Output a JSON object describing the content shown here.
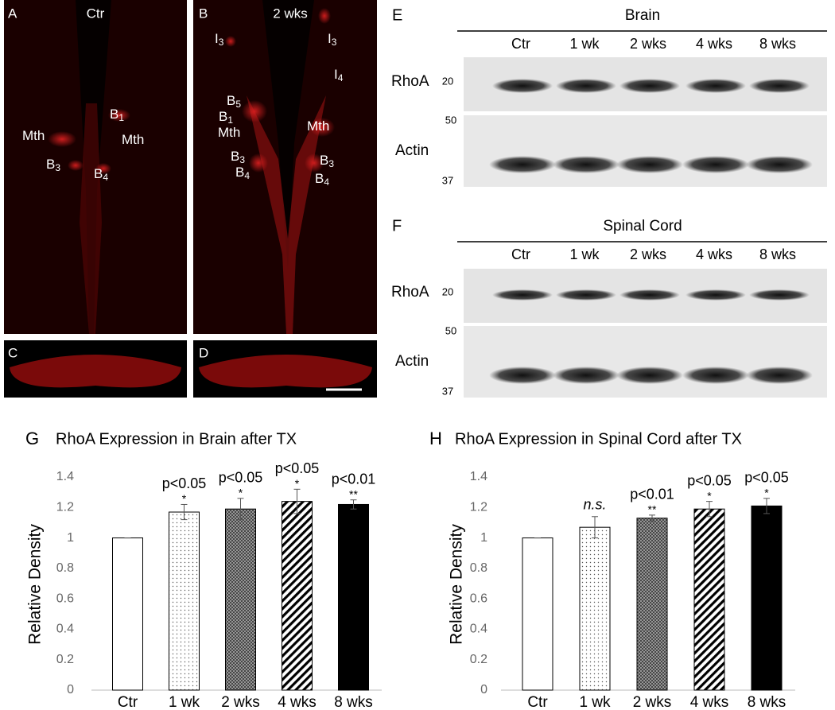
{
  "panels": {
    "A": {
      "letter": "A",
      "title": "Ctr",
      "labels": [
        {
          "t": "Mth"
        },
        {
          "t": "B",
          "s": "3"
        },
        {
          "t": "B",
          "s": "1"
        },
        {
          "t": "Mth"
        },
        {
          "t": "B",
          "s": "4"
        }
      ]
    },
    "B": {
      "letter": "B",
      "title": "2 wks",
      "labels": [
        {
          "t": "I",
          "s": "3"
        },
        {
          "t": "I",
          "s": "3"
        },
        {
          "t": "I",
          "s": "4"
        },
        {
          "t": "B",
          "s": "5"
        },
        {
          "t": "B",
          "s": "1"
        },
        {
          "t": "Mth"
        },
        {
          "t": "Mth"
        },
        {
          "t": "B",
          "s": "3"
        },
        {
          "t": "B",
          "s": "4"
        },
        {
          "t": "B",
          "s": "3"
        },
        {
          "t": "B",
          "s": "4"
        }
      ]
    },
    "C": {
      "letter": "C"
    },
    "D": {
      "letter": "D"
    }
  },
  "blots": [
    {
      "letter": "E",
      "title": "Brain",
      "lanes": [
        "Ctr",
        "1 wk",
        "2 wks",
        "4 wks",
        "8 wks"
      ],
      "rows": [
        "RhoA",
        "Actin"
      ],
      "markers": [
        "20",
        "50",
        "37"
      ]
    },
    {
      "letter": "F",
      "title": "Spinal Cord",
      "lanes": [
        "Ctr",
        "1 wk",
        "2 wks",
        "4 wks",
        "8 wks"
      ],
      "rows": [
        "RhoA",
        "Actin"
      ],
      "markers": [
        "20",
        "50",
        "37"
      ]
    }
  ],
  "chart_data": [
    {
      "type": "bar",
      "letter": "G",
      "title": "RhoA Expression in Brain after TX",
      "y_label": "Relative Density",
      "categories": [
        "Ctr",
        "1 wk",
        "2 wks",
        "4 wks",
        "8 wks"
      ],
      "values": [
        1,
        1.17,
        1.19,
        1.24,
        1.22
      ],
      "errors": [
        0,
        0.05,
        0.07,
        0.08,
        0.03
      ],
      "annotations": [
        null,
        "p<0.05",
        "p<0.05",
        "p<0.05",
        "p<0.01"
      ],
      "stars": [
        null,
        "*",
        "*",
        "*",
        "**"
      ],
      "fills": [
        "white",
        "dots",
        "crosshatch",
        "stripes",
        "black"
      ],
      "ylim": [
        0,
        1.4
      ],
      "yticks": [
        0,
        0.2,
        0.4,
        0.6,
        0.8,
        1,
        1.2,
        1.4
      ]
    },
    {
      "type": "bar",
      "letter": "H",
      "title": "RhoA Expression in Spinal Cord after TX",
      "y_label": "Relative Density",
      "categories": [
        "Ctr",
        "1 wk",
        "2 wks",
        "4 wks",
        "8 wks"
      ],
      "values": [
        1,
        1.07,
        1.13,
        1.19,
        1.21
      ],
      "errors": [
        0,
        0.07,
        0.02,
        0.05,
        0.05
      ],
      "annotations": [
        null,
        "n.s.",
        "p<0.01",
        "p<0.05",
        "p<0.05"
      ],
      "stars": [
        null,
        null,
        "**",
        "*",
        "*"
      ],
      "fills": [
        "white",
        "dots",
        "crosshatch",
        "stripes",
        "black"
      ],
      "ylim": [
        0,
        1.4
      ],
      "yticks": [
        0,
        0.2,
        0.4,
        0.6,
        0.8,
        1,
        1.2,
        1.4
      ]
    }
  ]
}
